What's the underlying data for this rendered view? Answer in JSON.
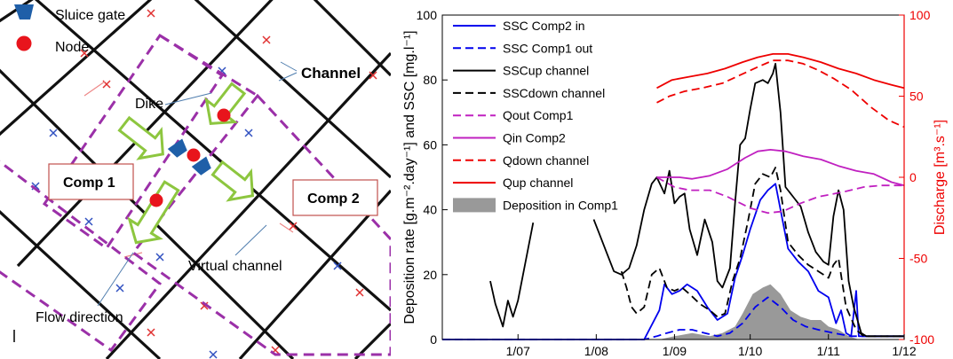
{
  "map": {
    "legend": {
      "sluice_gate": "Sluice gate",
      "node": "Node"
    },
    "labels": {
      "dike": "Dike",
      "channel": "Channel",
      "comp1": "Comp 1",
      "comp2": "Comp 2",
      "virtual_channel": "Virtual channel",
      "flow_direction": "Flow direction"
    },
    "colors": {
      "gate": "#1f5fa8",
      "node": "#e8141c",
      "dike": "#9b30a8",
      "arrow": "#8dc63f",
      "box_border": "#c0504d"
    }
  },
  "chart_data": {
    "type": "line",
    "x_tick_labels": [
      "1/07",
      "1/08",
      "1/09",
      "1/10",
      "1/11",
      "1/12"
    ],
    "xlim": [
      "2012-06-01",
      "2012-12-01"
    ],
    "ylabel_left": "Deposition rate [g.m⁻².day⁻¹] and SSC [mg.l⁻¹]",
    "ylabel_right": "Discharge [m³.s⁻¹]",
    "ylim_left": [
      0,
      100
    ],
    "ylim_right": [
      -100,
      100
    ],
    "yticks_left": [
      "0",
      "20",
      "40",
      "60",
      "80",
      "100"
    ],
    "yticks_right": [
      "-100",
      "-50",
      "0",
      "50",
      "100"
    ],
    "legend_position": "top-left",
    "series": [
      {
        "name": "SSC Comp2 in",
        "axis": "left",
        "color": "#0000ee",
        "dash": "solid",
        "points": [
          [
            "2012-06-01",
            0
          ],
          [
            "2012-08-20",
            0
          ],
          [
            "2012-08-26",
            9
          ],
          [
            "2012-08-28",
            17
          ],
          [
            "2012-08-31",
            14
          ],
          [
            "2012-09-03",
            15
          ],
          [
            "2012-09-06",
            17
          ],
          [
            "2012-09-10",
            15
          ],
          [
            "2012-09-14",
            10
          ],
          [
            "2012-09-18",
            6
          ],
          [
            "2012-09-22",
            8
          ],
          [
            "2012-09-25",
            19
          ],
          [
            "2012-09-28",
            26
          ],
          [
            "2012-10-01",
            34
          ],
          [
            "2012-10-05",
            43
          ],
          [
            "2012-10-08",
            46
          ],
          [
            "2012-10-11",
            48
          ],
          [
            "2012-10-13",
            40
          ],
          [
            "2012-10-16",
            28
          ],
          [
            "2012-10-20",
            24
          ],
          [
            "2012-10-24",
            21
          ],
          [
            "2012-10-28",
            15
          ],
          [
            "2012-11-01",
            13
          ],
          [
            "2012-11-04",
            5
          ],
          [
            "2012-11-06",
            9
          ],
          [
            "2012-11-08",
            2
          ],
          [
            "2012-11-10",
            1
          ],
          [
            "2012-11-12",
            15
          ],
          [
            "2012-11-13",
            1
          ],
          [
            "2012-12-01",
            1
          ]
        ]
      },
      {
        "name": "SSC Comp1 out",
        "axis": "left",
        "color": "#0000ee",
        "dash": "dashed",
        "points": [
          [
            "2012-06-01",
            0
          ],
          [
            "2012-08-20",
            0
          ],
          [
            "2012-08-25",
            1
          ],
          [
            "2012-08-29",
            2
          ],
          [
            "2012-09-03",
            3
          ],
          [
            "2012-09-08",
            3
          ],
          [
            "2012-09-13",
            2
          ],
          [
            "2012-09-18",
            1
          ],
          [
            "2012-09-23",
            2
          ],
          [
            "2012-09-28",
            5
          ],
          [
            "2012-10-03",
            10
          ],
          [
            "2012-10-08",
            13
          ],
          [
            "2012-10-13",
            10
          ],
          [
            "2012-10-18",
            6
          ],
          [
            "2012-10-23",
            4
          ],
          [
            "2012-10-28",
            3
          ],
          [
            "2012-11-03",
            2
          ],
          [
            "2012-11-10",
            1
          ],
          [
            "2012-12-01",
            1
          ]
        ]
      },
      {
        "name": "SSCup channel",
        "axis": "left",
        "color": "#000000",
        "dash": "solid",
        "points": [
          [
            "2012-06-20",
            18
          ],
          [
            "2012-06-22",
            11
          ],
          [
            "2012-06-25",
            4
          ],
          [
            "2012-06-27",
            12
          ],
          [
            "2012-06-29",
            7
          ],
          [
            "2012-07-01",
            12
          ],
          [
            "2012-07-03",
            20
          ],
          [
            "2012-07-05",
            28
          ],
          [
            "2012-07-07",
            36
          ],
          null,
          [
            "2012-07-31",
            37
          ],
          [
            "2012-08-02",
            33
          ],
          [
            "2012-08-05",
            27
          ],
          [
            "2012-08-08",
            21
          ],
          [
            "2012-08-11",
            20
          ],
          [
            "2012-08-14",
            22
          ],
          [
            "2012-08-17",
            29
          ],
          [
            "2012-08-20",
            40
          ],
          [
            "2012-08-23",
            48
          ],
          [
            "2012-08-25",
            50
          ],
          [
            "2012-08-28",
            45
          ],
          [
            "2012-08-30",
            52
          ],
          [
            "2012-09-01",
            42
          ],
          [
            "2012-09-03",
            44
          ],
          [
            "2012-09-05",
            45
          ],
          [
            "2012-09-07",
            34
          ],
          [
            "2012-09-10",
            26
          ],
          [
            "2012-09-13",
            37
          ],
          [
            "2012-09-16",
            30
          ],
          [
            "2012-09-18",
            18
          ],
          [
            "2012-09-20",
            16
          ],
          [
            "2012-09-23",
            22
          ],
          [
            "2012-09-25",
            42
          ],
          [
            "2012-09-27",
            60
          ],
          [
            "2012-09-29",
            62
          ],
          [
            "2012-10-01",
            71
          ],
          [
            "2012-10-03",
            79
          ],
          [
            "2012-10-06",
            80
          ],
          [
            "2012-10-08",
            79
          ],
          [
            "2012-10-10",
            82
          ],
          [
            "2012-10-11",
            85
          ],
          [
            "2012-10-13",
            70
          ],
          [
            "2012-10-15",
            47
          ],
          [
            "2012-10-18",
            44
          ],
          [
            "2012-10-21",
            41
          ],
          [
            "2012-10-24",
            33
          ],
          [
            "2012-10-27",
            27
          ],
          [
            "2012-10-30",
            24
          ],
          [
            "2012-11-01",
            23
          ],
          [
            "2012-11-03",
            38
          ],
          [
            "2012-11-05",
            46
          ],
          [
            "2012-11-07",
            40
          ],
          [
            "2012-11-09",
            18
          ],
          [
            "2012-11-11",
            10
          ],
          [
            "2012-11-14",
            2
          ],
          [
            "2012-11-16",
            1
          ],
          [
            "2012-12-01",
            1
          ]
        ]
      },
      {
        "name": "SSCdown channel",
        "axis": "left",
        "color": "#000000",
        "dash": "dashed",
        "points": [
          [
            "2012-08-11",
            21
          ],
          [
            "2012-08-13",
            16
          ],
          [
            "2012-08-15",
            10
          ],
          [
            "2012-08-17",
            8
          ],
          [
            "2012-08-20",
            10
          ],
          [
            "2012-08-23",
            20
          ],
          [
            "2012-08-26",
            22
          ],
          [
            "2012-08-29",
            16
          ],
          [
            "2012-09-01",
            15
          ],
          [
            "2012-09-04",
            16
          ],
          [
            "2012-09-07",
            14
          ],
          [
            "2012-09-11",
            11
          ],
          [
            "2012-09-15",
            9
          ],
          [
            "2012-09-18",
            7
          ],
          [
            "2012-09-21",
            8
          ],
          [
            "2012-09-24",
            18
          ],
          [
            "2012-09-27",
            25
          ],
          [
            "2012-09-30",
            36
          ],
          [
            "2012-10-03",
            48
          ],
          [
            "2012-10-06",
            51
          ],
          [
            "2012-10-09",
            50
          ],
          [
            "2012-10-11",
            53
          ],
          [
            "2012-10-13",
            46
          ],
          [
            "2012-10-16",
            30
          ],
          [
            "2012-10-20",
            26
          ],
          [
            "2012-10-24",
            23
          ],
          [
            "2012-10-28",
            21
          ],
          [
            "2012-11-01",
            19
          ],
          [
            "2012-11-03",
            23
          ],
          [
            "2012-11-05",
            25
          ],
          [
            "2012-11-08",
            10
          ],
          [
            "2012-11-12",
            3
          ],
          [
            "2012-11-15",
            1
          ],
          [
            "2012-12-01",
            1
          ]
        ]
      },
      {
        "name": "Qout Comp1",
        "axis": "right",
        "color": "#c020c0",
        "dash": "dashed",
        "points": [
          [
            "2012-08-25",
            0
          ],
          [
            "2012-09-01",
            -6
          ],
          [
            "2012-09-07",
            -8
          ],
          [
            "2012-09-15",
            -8
          ],
          [
            "2012-09-22",
            -12
          ],
          [
            "2012-10-01",
            -19
          ],
          [
            "2012-10-08",
            -22
          ],
          [
            "2012-10-14",
            -21
          ],
          [
            "2012-10-21",
            -16
          ],
          [
            "2012-10-28",
            -12
          ],
          [
            "2012-11-07",
            -9
          ],
          [
            "2012-11-15",
            -6
          ],
          [
            "2012-11-22",
            -5
          ],
          [
            "2012-12-01",
            -5
          ]
        ]
      },
      {
        "name": "Qin Comp2",
        "axis": "right",
        "color": "#c020c0",
        "dash": "solid",
        "points": [
          [
            "2012-08-25",
            0
          ],
          [
            "2012-09-03",
            0
          ],
          [
            "2012-09-08",
            -1
          ],
          [
            "2012-09-15",
            1
          ],
          [
            "2012-09-22",
            5
          ],
          [
            "2012-09-29",
            12
          ],
          [
            "2012-10-04",
            16
          ],
          [
            "2012-10-09",
            17
          ],
          [
            "2012-10-15",
            16
          ],
          [
            "2012-10-22",
            13
          ],
          [
            "2012-10-29",
            11
          ],
          [
            "2012-11-05",
            7
          ],
          [
            "2012-11-12",
            4
          ],
          [
            "2012-11-19",
            2
          ],
          [
            "2012-11-26",
            -3
          ],
          [
            "2012-12-01",
            -5
          ]
        ]
      },
      {
        "name": "Qdown channel",
        "axis": "right",
        "color": "#ee0000",
        "dash": "dashed",
        "points": [
          [
            "2012-08-25",
            46
          ],
          [
            "2012-08-30",
            50
          ],
          [
            "2012-09-05",
            53
          ],
          [
            "2012-09-12",
            55
          ],
          [
            "2012-09-20",
            58
          ],
          [
            "2012-09-27",
            63
          ],
          [
            "2012-10-04",
            68
          ],
          [
            "2012-10-10",
            72
          ],
          [
            "2012-10-16",
            72
          ],
          [
            "2012-10-22",
            70
          ],
          [
            "2012-10-28",
            66
          ],
          [
            "2012-11-03",
            61
          ],
          [
            "2012-11-10",
            54
          ],
          [
            "2012-11-18",
            43
          ],
          [
            "2012-11-25",
            35
          ],
          [
            "2012-12-01",
            31
          ]
        ]
      },
      {
        "name": "Qup channel",
        "axis": "right",
        "color": "#ee0000",
        "dash": "solid",
        "points": [
          [
            "2012-08-25",
            55
          ],
          [
            "2012-08-31",
            60
          ],
          [
            "2012-09-07",
            62
          ],
          [
            "2012-09-14",
            64
          ],
          [
            "2012-09-21",
            67
          ],
          [
            "2012-09-28",
            71
          ],
          [
            "2012-10-04",
            74
          ],
          [
            "2012-10-10",
            76
          ],
          [
            "2012-10-16",
            76
          ],
          [
            "2012-10-22",
            74
          ],
          [
            "2012-10-29",
            71
          ],
          [
            "2012-11-05",
            67
          ],
          [
            "2012-11-12",
            64
          ],
          [
            "2012-11-19",
            60
          ],
          [
            "2012-11-26",
            57
          ],
          [
            "2012-12-01",
            55
          ]
        ]
      },
      {
        "name": "Deposition in Comp1",
        "axis": "left",
        "type": "area",
        "color": "#999999",
        "points": [
          [
            "2012-08-26",
            0
          ],
          [
            "2012-09-01",
            1
          ],
          [
            "2012-09-08",
            2
          ],
          [
            "2012-09-15",
            1
          ],
          [
            "2012-09-20",
            2
          ],
          [
            "2012-09-25",
            4
          ],
          [
            "2012-09-28",
            8
          ],
          [
            "2012-10-02",
            14
          ],
          [
            "2012-10-06",
            16
          ],
          [
            "2012-10-09",
            17
          ],
          [
            "2012-10-13",
            14
          ],
          [
            "2012-10-17",
            9
          ],
          [
            "2012-10-21",
            7
          ],
          [
            "2012-10-25",
            6
          ],
          [
            "2012-10-29",
            6
          ],
          [
            "2012-11-01",
            4
          ],
          [
            "2012-11-05",
            3
          ],
          [
            "2012-11-09",
            1
          ],
          [
            "2012-11-13",
            0
          ]
        ]
      }
    ]
  }
}
